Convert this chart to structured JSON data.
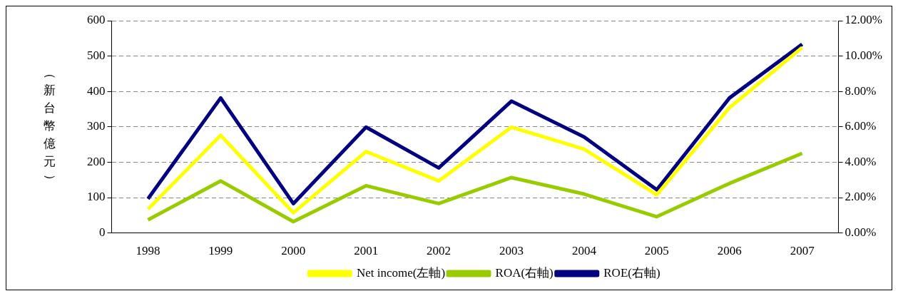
{
  "chart_data": {
    "type": "line",
    "ylabel": "（新台幣億元）",
    "categories": [
      "1998",
      "1999",
      "2000",
      "2001",
      "2002",
      "2003",
      "2004",
      "2005",
      "2006",
      "2007"
    ],
    "series": [
      {
        "name": "Net income(左軸)",
        "color": "#ffff00",
        "values": [
          67,
          276,
          57,
          230,
          147,
          299,
          237,
          108,
          354,
          524
        ]
      },
      {
        "name": "ROA(右軸)",
        "color": "#99cc00",
        "axis": "y2",
        "values": [
          0.74,
          2.94,
          0.64,
          2.67,
          1.66,
          3.13,
          2.2,
          0.92,
          2.8,
          4.5
        ]
      },
      {
        "name": "ROE(右軸)",
        "color": "#000080",
        "axis": "y2",
        "values": [
          1.93,
          7.63,
          1.66,
          5.98,
          3.68,
          7.45,
          5.43,
          2.44,
          7.63,
          10.67
        ]
      }
    ],
    "ylim": [
      0,
      600
    ],
    "yticks": [
      0,
      100,
      200,
      300,
      400,
      500,
      600
    ],
    "y2lim": [
      0,
      12
    ],
    "y2ticks": [
      {
        "value": 0,
        "label": "0.00%"
      },
      {
        "value": 2,
        "label": "2.00%"
      },
      {
        "value": 4,
        "label": "4.00%"
      },
      {
        "value": 6,
        "label": "6.00%"
      },
      {
        "value": 8,
        "label": "8.00%"
      },
      {
        "value": 10,
        "label": "10.00%"
      },
      {
        "value": 12,
        "label": "12.00%"
      }
    ],
    "grid": "y",
    "legend": "bottom",
    "marker": "none",
    "line_style": "solid"
  }
}
